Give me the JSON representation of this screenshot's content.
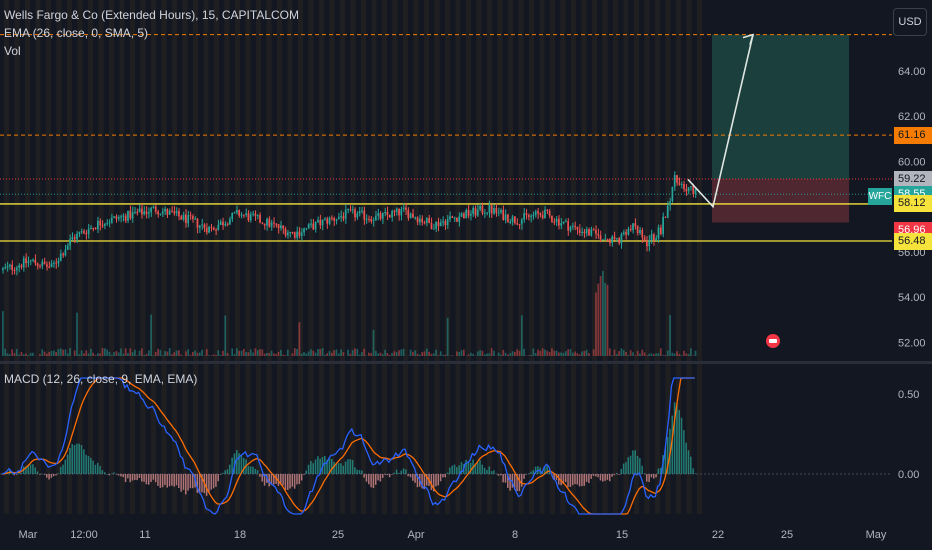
{
  "legend": {
    "symbol": "Wells Fargo & Co (Extended Hours), 15, CAPITALCOM",
    "ema": "EMA (26, close, 0, SMA, 5)",
    "vol": "Vol",
    "macd": "MACD (12, 26, close, 9, EMA, EMA)"
  },
  "currency": "USD",
  "symbol_tag": "WFC",
  "colors": {
    "background": "#131722",
    "up": "#26a69a",
    "down": "#ef5350",
    "channel": "#f5e33c",
    "target_zone": "#1f4d45",
    "stop_zone": "#5a2a33",
    "orange": "#f57c00",
    "macd_line": "#2962ff",
    "signal_line": "#ff6d00"
  },
  "chart_data": [
    {
      "type": "candlestick",
      "title": "Wells Fargo & Co (Extended Hours), 15, CAPITALCOM",
      "y_ticks": [
        "64.00",
        "62.00",
        "60.00",
        "56.00",
        "54.00",
        "52.00"
      ],
      "x_ticks": [
        "Mar",
        "12:00",
        "11",
        "18",
        "25",
        "Apr",
        "8",
        "15",
        "22",
        "25",
        "May"
      ],
      "ylim": [
        51.4,
        66.6
      ],
      "price_labels": [
        {
          "value": "61.16",
          "color": "#f57c00",
          "text_color": "#131722"
        },
        {
          "value": "59.22",
          "color": "#b2b5be",
          "text_color": "#131722"
        },
        {
          "value": "58.55",
          "color": "#26a69a",
          "text_color": "#ffffff"
        },
        {
          "value": "58.12",
          "color": "#f5e33c",
          "text_color": "#131722"
        },
        {
          "value": "56.96",
          "color": "#f23645",
          "text_color": "#ffffff"
        },
        {
          "value": "56.48",
          "color": "#f5e33c",
          "text_color": "#131722"
        }
      ],
      "horizontal_levels": [
        {
          "value": 65.6,
          "style": "dashed",
          "color": "#f57c00"
        },
        {
          "value": 61.16,
          "style": "dashed",
          "color": "#f57c00"
        },
        {
          "value": 59.22,
          "style": "dotted",
          "color": "#f23645"
        },
        {
          "value": 58.12,
          "style": "solid",
          "color": "#f5e33c"
        },
        {
          "value": 56.48,
          "style": "solid",
          "color": "#f5e33c"
        }
      ],
      "position": {
        "entry": 58.55,
        "target": 65.6,
        "stop": 57.3
      },
      "projection_path": [
        59.2,
        58.0,
        65.6
      ],
      "price_path": [
        {
          "pos": 0,
          "price": 55.2
        },
        {
          "pos": 0.04,
          "price": 55.6
        },
        {
          "pos": 0.07,
          "price": 55.3
        },
        {
          "pos": 0.1,
          "price": 56.6
        },
        {
          "pos": 0.14,
          "price": 57.3
        },
        {
          "pos": 0.18,
          "price": 57.6
        },
        {
          "pos": 0.22,
          "price": 57.9
        },
        {
          "pos": 0.26,
          "price": 57.5
        },
        {
          "pos": 0.3,
          "price": 57.0
        },
        {
          "pos": 0.34,
          "price": 57.7
        },
        {
          "pos": 0.38,
          "price": 57.3
        },
        {
          "pos": 0.42,
          "price": 56.8
        },
        {
          "pos": 0.46,
          "price": 57.3
        },
        {
          "pos": 0.5,
          "price": 57.7
        },
        {
          "pos": 0.54,
          "price": 57.5
        },
        {
          "pos": 0.58,
          "price": 57.8
        },
        {
          "pos": 0.62,
          "price": 57.2
        },
        {
          "pos": 0.66,
          "price": 57.6
        },
        {
          "pos": 0.7,
          "price": 57.9
        },
        {
          "pos": 0.74,
          "price": 57.4
        },
        {
          "pos": 0.78,
          "price": 57.7
        },
        {
          "pos": 0.82,
          "price": 57.1
        },
        {
          "pos": 0.86,
          "price": 56.7
        },
        {
          "pos": 0.89,
          "price": 56.5
        },
        {
          "pos": 0.91,
          "price": 57.1
        },
        {
          "pos": 0.93,
          "price": 56.4
        },
        {
          "pos": 0.95,
          "price": 57.0
        },
        {
          "pos": 0.97,
          "price": 59.2
        },
        {
          "pos": 1.0,
          "price": 58.6
        }
      ]
    },
    {
      "type": "line",
      "title": "MACD (12, 26, close, 9, EMA, EMA)",
      "y_ticks": [
        "0.50",
        "0.00"
      ],
      "ylim": [
        -0.25,
        0.6
      ],
      "series": [
        {
          "color": "#2962ff"
        },
        {
          "color": "#ff6d00"
        }
      ]
    }
  ]
}
